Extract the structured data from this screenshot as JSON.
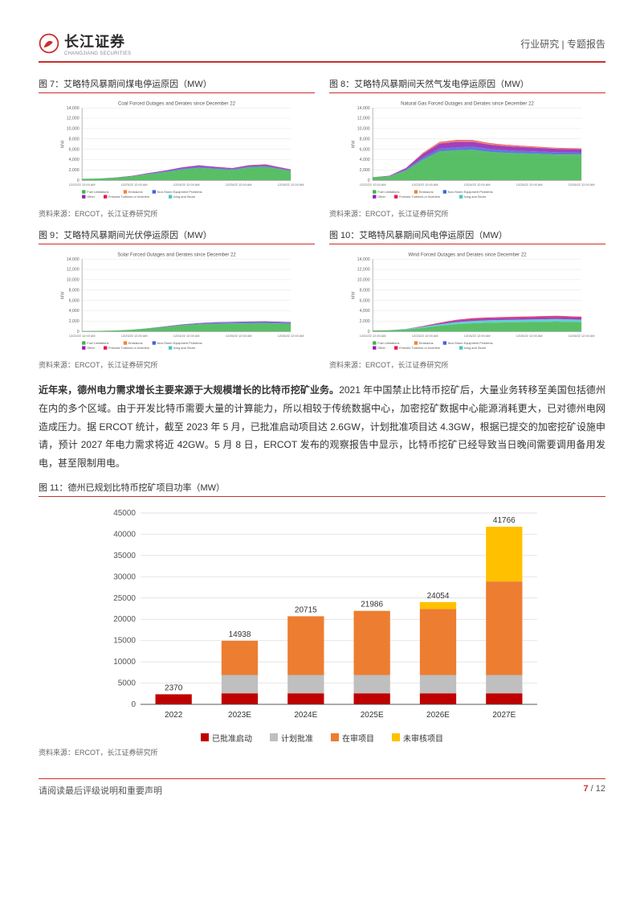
{
  "header": {
    "brand_cn": "长江证券",
    "brand_en": "CHANGJIANG SECURITIES",
    "right": "行业研究 | 专题报告"
  },
  "area_charts": {
    "axis_color": "#888888",
    "grid_color": "#e0e0e0",
    "bg_color": "#ffffff",
    "y_min": 0,
    "y_max": 14000,
    "y_ticks": [
      0,
      2000,
      4000,
      6000,
      8000,
      10000,
      12000,
      14000
    ],
    "x_labels": [
      "12/22/22 12:00 AM",
      "12/23/22 12:00 AM",
      "12/24/22 12:00 AM",
      "12/25/22 12:00 AM",
      "12/26/22 12:00 AM"
    ],
    "legend_items": [
      "Fuel Limitations",
      "Emissions",
      "Non-Storm Equipment Problems",
      "Other",
      "Freezed Turbines or Inverters",
      "Icing and Storm"
    ],
    "legend_colors": [
      "#3cb44b",
      "#f58231",
      "#4363d8",
      "#911eb4",
      "#e6194b",
      "#46c8c8"
    ],
    "x_samples": [
      0,
      0.08,
      0.16,
      0.24,
      0.32,
      0.4,
      0.48,
      0.56,
      0.64,
      0.72,
      0.8,
      0.88,
      1.0
    ],
    "figs": [
      {
        "title": "图 7：艾略特风暴期间煤电停运原因（MW）",
        "subtitle": "Coal Forced Outages and Derates since December 22",
        "src": "资料来源：ERCOT，长江证券研究所",
        "series": [
          {
            "color": "#3cb44b",
            "vals": [
              300,
              350,
              500,
              800,
              1200,
              1600,
              2100,
              2400,
              2200,
              2000,
              2500,
              2600,
              1800
            ]
          },
          {
            "color": "#4363d8",
            "vals": [
              0,
              0,
              0,
              0,
              100,
              150,
              200,
              250,
              200,
              180,
              200,
              220,
              150
            ]
          },
          {
            "color": "#911eb4",
            "vals": [
              0,
              0,
              50,
              80,
              120,
              150,
              180,
              200,
              180,
              160,
              180,
              200,
              120
            ]
          },
          {
            "color": "#e6194b",
            "vals": [
              0,
              0,
              0,
              0,
              0,
              0,
              40,
              60,
              50,
              40,
              50,
              60,
              40
            ]
          }
        ]
      },
      {
        "title": "图 8：艾略特风暴期间天然气发电停运原因（MW）",
        "subtitle": "Natural Gas Forced Outages and Derates since December 22",
        "src": "资料来源：ERCOT，长江证券研究所",
        "series": [
          {
            "color": "#3cb44b",
            "vals": [
              600,
              800,
              1900,
              4000,
              5600,
              5800,
              5900,
              5500,
              5300,
              5200,
              5100,
              5000,
              5000
            ]
          },
          {
            "color": "#4363d8",
            "vals": [
              0,
              0,
              200,
              400,
              500,
              550,
              600,
              550,
              500,
              480,
              450,
              420,
              400
            ]
          },
          {
            "color": "#911eb4",
            "vals": [
              0,
              100,
              300,
              700,
              1000,
              1100,
              950,
              850,
              800,
              750,
              700,
              650,
              600
            ]
          },
          {
            "color": "#f58231",
            "vals": [
              0,
              0,
              0,
              120,
              180,
              200,
              190,
              170,
              150,
              140,
              130,
              120,
              110
            ]
          },
          {
            "color": "#e6194b",
            "vals": [
              0,
              0,
              0,
              80,
              120,
              140,
              130,
              120,
              110,
              100,
              90,
              80,
              70
            ]
          }
        ]
      },
      {
        "title": "图 9：艾略特风暴期间光伏停运原因（MW）",
        "subtitle": "Solar Forced Outages and Derates since December 22",
        "src": "资料来源：ERCOT，长江证券研究所",
        "series": [
          {
            "color": "#3cb44b",
            "vals": [
              100,
              120,
              200,
              350,
              600,
              900,
              1200,
              1400,
              1500,
              1550,
              1600,
              1620,
              1500
            ]
          },
          {
            "color": "#4363d8",
            "vals": [
              0,
              0,
              0,
              0,
              50,
              80,
              120,
              150,
              170,
              180,
              190,
              200,
              180
            ]
          },
          {
            "color": "#911eb4",
            "vals": [
              0,
              0,
              0,
              0,
              0,
              30,
              60,
              90,
              110,
              120,
              130,
              140,
              120
            ]
          }
        ]
      },
      {
        "title": "图 10：艾略特风暴期间风电停运原因（MW）",
        "subtitle": "Wind Forced Outages and Derates since December 22",
        "src": "资料来源：ERCOT，长江证券研究所",
        "series": [
          {
            "color": "#3cb44b",
            "vals": [
              200,
              250,
              400,
              700,
              1100,
              1400,
              1600,
              1700,
              1750,
              1800,
              1850,
              1900,
              1800
            ]
          },
          {
            "color": "#46c8c8",
            "vals": [
              0,
              0,
              100,
              200,
              300,
              400,
              450,
              470,
              480,
              490,
              500,
              510,
              480
            ]
          },
          {
            "color": "#911eb4",
            "vals": [
              0,
              0,
              0,
              100,
              200,
              300,
              350,
              370,
              380,
              390,
              400,
              410,
              380
            ]
          },
          {
            "color": "#e6194b",
            "vals": [
              0,
              0,
              0,
              50,
              100,
              150,
              180,
              190,
              195,
              200,
              205,
              210,
              190
            ]
          }
        ]
      }
    ]
  },
  "paragraph": {
    "lead": "近年来，德州电力需求增长主要来源于大规模增长的比特币挖矿业务。",
    "body": "2021 年中国禁止比特币挖矿后，大量业务转移至美国包括德州在内的多个区域。由于开发比特币需要大量的计算能力，所以相较于传统数据中心，加密挖矿数据中心能源消耗更大，已对德州电网造成压力。据 ERCOT 统计，截至 2023 年 5 月，已批准启动项目达 2.6GW，计划批准项目达 4.3GW，根据已提交的加密挖矿设施申请，预计 2027 年电力需求将近 42GW。5 月 8 日，ERCOT 发布的观察报告中显示，比特币挖矿已经导致当日晚间需要调用备用发电，甚至限制用电。"
  },
  "bar": {
    "title": "图 11：德州已规划比特币挖矿项目功率（MW）",
    "src": "资料来源：ERCOT，长江证券研究所",
    "categories": [
      "2022",
      "2023E",
      "2024E",
      "2025E",
      "2026E",
      "2027E"
    ],
    "totals": [
      2370,
      14938,
      20715,
      21986,
      24054,
      41766
    ],
    "series": [
      {
        "name": "已批准启动",
        "color": "#c00000",
        "vals": [
          2370,
          2600,
          2600,
          2600,
          2600,
          2600
        ]
      },
      {
        "name": "计划批准",
        "color": "#bfbfbf",
        "vals": [
          0,
          4300,
          4300,
          4300,
          4300,
          4300
        ]
      },
      {
        "name": "在审项目",
        "color": "#ed7d31",
        "vals": [
          0,
          8038,
          13815,
          15086,
          15500,
          22000
        ]
      },
      {
        "name": "未审核项目",
        "color": "#ffc000",
        "vals": [
          0,
          0,
          0,
          0,
          1654,
          12866
        ]
      }
    ],
    "y_min": 0,
    "y_max": 45000,
    "y_step": 5000,
    "bar_width": 0.55,
    "bg_color": "#ffffff",
    "grid_color": "#d9d9d9",
    "axis_color": "#595959",
    "label_fontsize": 10
  },
  "footer": {
    "left": "请阅读最后评级说明和重要声明",
    "page": "7",
    "total": "12",
    "sep": " / "
  }
}
